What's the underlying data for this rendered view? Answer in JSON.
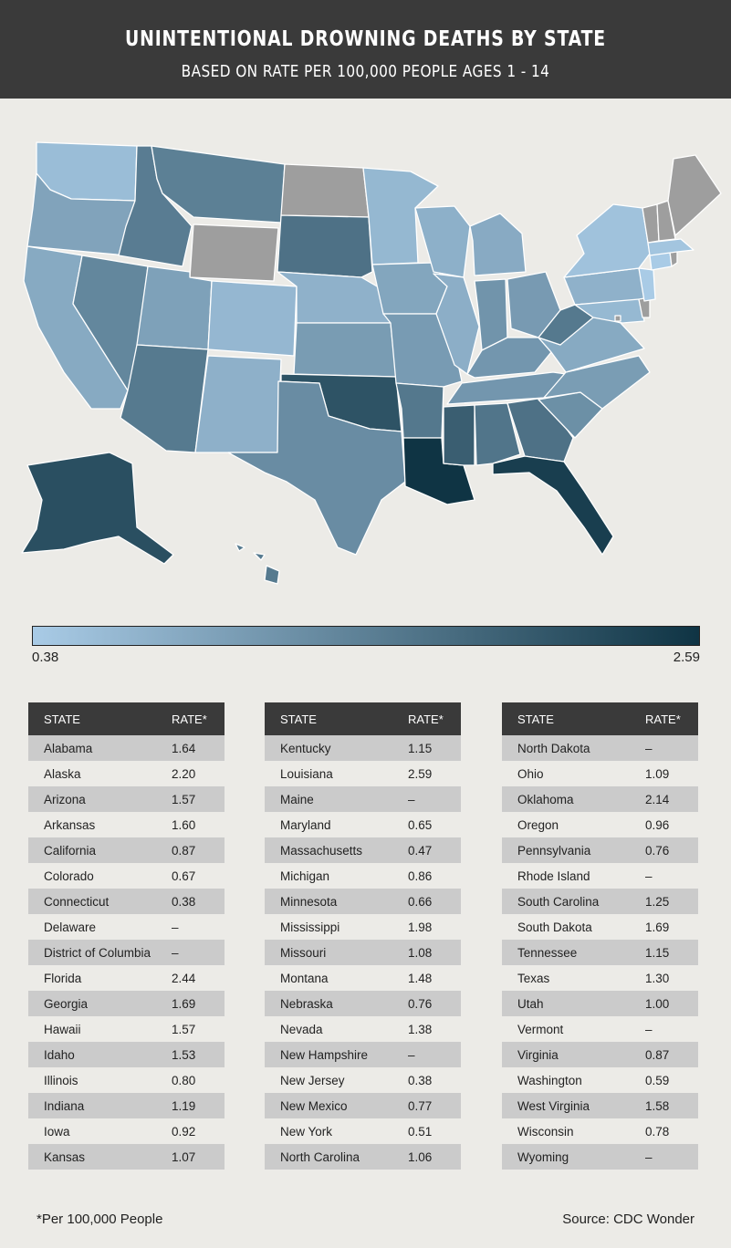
{
  "title": "UNINTENTIONAL DROWNING DEATHS BY STATE",
  "subtitle": "BASED ON RATE PER 100,000 PEOPLE AGES 1 - 14",
  "legend": {
    "min": "0.38",
    "max": "2.59",
    "color_low": "#a9cbe6",
    "color_high": "#0f3444",
    "no_data_color": "#9e9e9e"
  },
  "table_headers": {
    "state": "STATE",
    "rate": "RATE*"
  },
  "table_columns": [
    [
      {
        "state": "Alabama",
        "rate": "1.64"
      },
      {
        "state": "Alaska",
        "rate": "2.20"
      },
      {
        "state": "Arizona",
        "rate": "1.57"
      },
      {
        "state": "Arkansas",
        "rate": "1.60"
      },
      {
        "state": "California",
        "rate": "0.87"
      },
      {
        "state": "Colorado",
        "rate": "0.67"
      },
      {
        "state": "Connecticut",
        "rate": "0.38"
      },
      {
        "state": "Delaware",
        "rate": "–"
      },
      {
        "state": "District of Columbia",
        "rate": "–"
      },
      {
        "state": "Florida",
        "rate": "2.44"
      },
      {
        "state": "Georgia",
        "rate": "1.69"
      },
      {
        "state": "Hawaii",
        "rate": "1.57"
      },
      {
        "state": "Idaho",
        "rate": "1.53"
      },
      {
        "state": "Illinois",
        "rate": "0.80"
      },
      {
        "state": "Indiana",
        "rate": "1.19"
      },
      {
        "state": "Iowa",
        "rate": "0.92"
      },
      {
        "state": "Kansas",
        "rate": "1.07"
      }
    ],
    [
      {
        "state": "Kentucky",
        "rate": "1.15"
      },
      {
        "state": "Louisiana",
        "rate": "2.59"
      },
      {
        "state": "Maine",
        "rate": "–"
      },
      {
        "state": "Maryland",
        "rate": "0.65"
      },
      {
        "state": "Massachusetts",
        "rate": "0.47"
      },
      {
        "state": "Michigan",
        "rate": "0.86"
      },
      {
        "state": "Minnesota",
        "rate": "0.66"
      },
      {
        "state": "Mississippi",
        "rate": "1.98"
      },
      {
        "state": "Missouri",
        "rate": "1.08"
      },
      {
        "state": "Montana",
        "rate": "1.48"
      },
      {
        "state": "Nebraska",
        "rate": "0.76"
      },
      {
        "state": "Nevada",
        "rate": "1.38"
      },
      {
        "state": "New Hampshire",
        "rate": "–"
      },
      {
        "state": "New Jersey",
        "rate": "0.38"
      },
      {
        "state": "New Mexico",
        "rate": "0.77"
      },
      {
        "state": "New York",
        "rate": "0.51"
      },
      {
        "state": "North Carolina",
        "rate": "1.06"
      }
    ],
    [
      {
        "state": "North Dakota",
        "rate": "–"
      },
      {
        "state": "Ohio",
        "rate": "1.09"
      },
      {
        "state": "Oklahoma",
        "rate": "2.14"
      },
      {
        "state": "Oregon",
        "rate": "0.96"
      },
      {
        "state": "Pennsylvania",
        "rate": "0.76"
      },
      {
        "state": "Rhode Island",
        "rate": "–"
      },
      {
        "state": "South Carolina",
        "rate": "1.25"
      },
      {
        "state": "South Dakota",
        "rate": "1.69"
      },
      {
        "state": "Tennessee",
        "rate": "1.15"
      },
      {
        "state": "Texas",
        "rate": "1.30"
      },
      {
        "state": "Utah",
        "rate": "1.00"
      },
      {
        "state": "Vermont",
        "rate": "–"
      },
      {
        "state": "Virginia",
        "rate": "0.87"
      },
      {
        "state": "Washington",
        "rate": "0.59"
      },
      {
        "state": "West Virginia",
        "rate": "1.58"
      },
      {
        "state": "Wisconsin",
        "rate": "0.78"
      },
      {
        "state": "Wyoming",
        "rate": "–"
      }
    ]
  ],
  "footnote": "*Per 100,000 People",
  "source": "Source: CDC Wonder"
}
